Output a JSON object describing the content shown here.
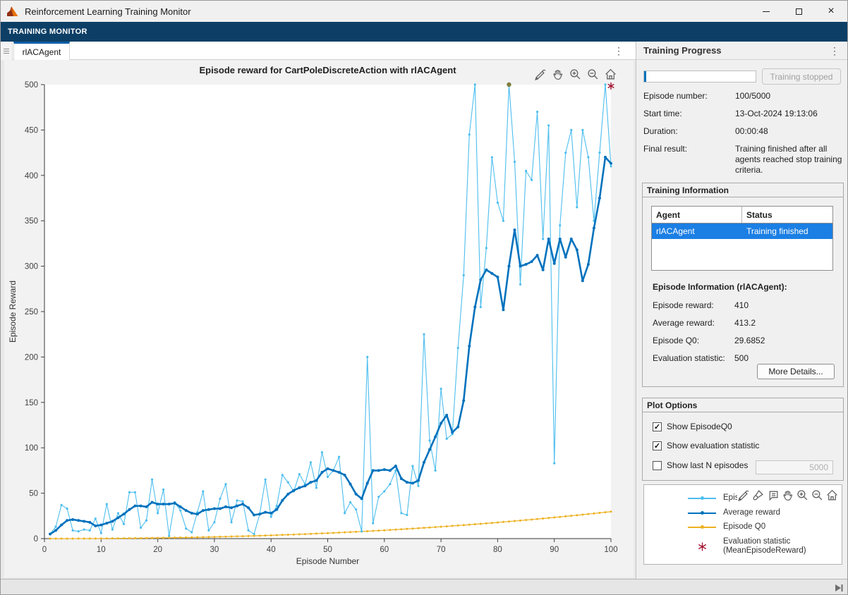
{
  "window": {
    "title": "Reinforcement Learning Training Monitor"
  },
  "ribbon": {
    "label": "TRAINING MONITOR"
  },
  "tabs": {
    "active": "rlACAgent",
    "menu_icon": "kebab-menu",
    "grip_icon": "tab-grip"
  },
  "colors": {
    "accent": "#0072bd",
    "episode_reward": "#4dbeee",
    "average_reward": "#0072bd",
    "episode_q0": "#edb120",
    "evaluation": "#a2142f",
    "ribbon": "#0d3f66",
    "row_selection": "#1b7fe4"
  },
  "training_progress": {
    "title": "Training Progress",
    "progress_percent": 2,
    "stop_button": "Training stopped",
    "rows": [
      {
        "label": "Episode number:",
        "value": "100/5000"
      },
      {
        "label": "Start time:",
        "value": "13-Oct-2024 19:13:06"
      },
      {
        "label": "Duration:",
        "value": "00:00:48"
      },
      {
        "label": "Final result:",
        "value": "Training finished after all agents reached stop training criteria."
      }
    ]
  },
  "training_information": {
    "title": "Training Information",
    "table": {
      "columns": [
        "Agent",
        "Status"
      ],
      "rows": [
        {
          "agent": "rlACAgent",
          "status": "Training finished",
          "selected": true
        }
      ]
    },
    "episode_info_title": "Episode Information (rlACAgent):",
    "rows": [
      {
        "label": "Episode reward:",
        "value": "410"
      },
      {
        "label": "Average reward:",
        "value": "413.2"
      },
      {
        "label": "Episode Q0:",
        "value": "29.6852"
      },
      {
        "label": "Evaluation statistic:",
        "value": "500"
      }
    ],
    "more_details_button": "More Details..."
  },
  "plot_options": {
    "title": "Plot Options",
    "items": [
      {
        "label": "Show EpisodeQ0",
        "checked": true
      },
      {
        "label": "Show evaluation statistic",
        "checked": true
      },
      {
        "label": "Show last N episodes",
        "checked": false
      }
    ],
    "last_n_value": "5000",
    "check_glyph": "✓"
  },
  "legend": {
    "items": [
      {
        "label": "Episo",
        "color": "#4dbeee",
        "type": "line"
      },
      {
        "label": "Average reward",
        "color": "#0072bd",
        "type": "line"
      },
      {
        "label": "Episode Q0",
        "color": "#edb120",
        "type": "line"
      },
      {
        "label": "Evaluation statistic (MeanEpisodeReward)",
        "label_line1": "Evaluation statistic",
        "label_line2": "(MeanEpisodeReward)",
        "color": "#a2142f",
        "type": "asterisk"
      }
    ]
  },
  "chart_data": {
    "type": "line",
    "title": "Episode reward for CartPoleDiscreteAction with rlACAgent",
    "xlabel": "Episode Number",
    "ylabel": "Episode Reward",
    "xlim": [
      0,
      100
    ],
    "ylim": [
      0,
      500
    ],
    "xticks": [
      0,
      10,
      20,
      30,
      40,
      50,
      60,
      70,
      80,
      90,
      100
    ],
    "yticks": [
      0,
      50,
      100,
      150,
      200,
      250,
      300,
      350,
      400,
      450,
      500
    ],
    "grid": false,
    "legend_position": "external-panel",
    "x_start": 1,
    "series": [
      {
        "name": "Episode reward",
        "color": "#4dbeee",
        "width": 1.1,
        "marker": 1.6,
        "values": [
          5,
          13,
          37,
          33,
          9,
          8,
          10,
          9,
          22,
          6,
          38,
          10,
          28,
          16,
          51,
          51,
          12,
          20,
          65,
          28,
          54,
          3,
          40,
          31,
          11,
          7,
          29,
          52,
          9,
          18,
          44,
          60,
          18,
          42,
          41,
          9,
          5,
          27,
          65,
          24,
          36,
          70,
          62,
          52,
          71,
          60,
          84,
          56,
          95,
          68,
          75,
          90,
          28,
          40,
          32,
          8,
          200,
          17,
          46,
          52,
          60,
          75,
          28,
          26,
          80,
          58,
          225,
          108,
          75,
          165,
          110,
          115,
          210,
          290,
          445,
          500,
          255,
          320,
          420,
          370,
          350,
          500,
          415,
          280,
          405,
          395,
          470,
          330,
          455,
          83,
          345,
          425,
          450,
          365,
          450,
          420,
          350,
          425,
          500,
          410
        ]
      },
      {
        "name": "Average reward",
        "color": "#0072bd",
        "width": 2.6,
        "marker": 2.0,
        "values": [
          5,
          9,
          15,
          20,
          21,
          20,
          19,
          18,
          14,
          15,
          17,
          19,
          23,
          27,
          32,
          36,
          36,
          35,
          40,
          38,
          38,
          38,
          39,
          35,
          31,
          28,
          27,
          31,
          32,
          33,
          33,
          35,
          34,
          36,
          38,
          34,
          26,
          27,
          29,
          28,
          32,
          42,
          49,
          53,
          56,
          58,
          62,
          64,
          73,
          77,
          75,
          73,
          70,
          60,
          49,
          44,
          61,
          75,
          75,
          76,
          75,
          80,
          66,
          62,
          61,
          64,
          84,
          98,
          112,
          127,
          136,
          117,
          123,
          152,
          212,
          255,
          285,
          296,
          292,
          288,
          252,
          300,
          340,
          300,
          302,
          305,
          312,
          296,
          330,
          303,
          330,
          310,
          330,
          318,
          284,
          302,
          342,
          375,
          420,
          413.2
        ]
      },
      {
        "name": "Episode Q0",
        "color": "#edb120",
        "width": 1.2,
        "marker": 1.5,
        "values": [
          0.01,
          0.01,
          0.02,
          0.02,
          0.03,
          0.05,
          0.08,
          0.1,
          0.12,
          0.15,
          0.2,
          0.24,
          0.29,
          0.33,
          0.38,
          0.45,
          0.52,
          0.59,
          0.66,
          0.73,
          0.83,
          0.93,
          1.02,
          1.12,
          1.22,
          1.35,
          1.48,
          1.6,
          1.73,
          1.86,
          2.02,
          2.18,
          2.33,
          2.49,
          2.65,
          2.84,
          3.03,
          3.22,
          3.42,
          3.61,
          3.83,
          4.06,
          4.28,
          4.51,
          4.73,
          4.99,
          5.25,
          5.51,
          5.77,
          6.03,
          6.33,
          6.62,
          6.92,
          7.21,
          7.51,
          7.84,
          8.17,
          8.5,
          8.84,
          9.17,
          9.54,
          9.91,
          10.28,
          10.65,
          11.02,
          11.43,
          11.84,
          12.25,
          12.66,
          13.07,
          13.52,
          13.97,
          14.42,
          14.87,
          15.32,
          15.81,
          16.3,
          16.79,
          17.28,
          17.77,
          18.3,
          18.83,
          19.37,
          19.9,
          20.43,
          21.0,
          21.58,
          22.15,
          22.73,
          23.3,
          23.92,
          24.53,
          25.15,
          25.76,
          26.38,
          27.04,
          27.7,
          28.36,
          29.02,
          29.69
        ]
      }
    ],
    "evaluation_marker": {
      "x": 100,
      "y": 500,
      "color": "#a2142f",
      "name": "Evaluation statistic (MeanEpisodeReward)"
    },
    "peak_marker": {
      "x": 82,
      "y": 500,
      "color": "#7e7e3f"
    }
  },
  "icons": {
    "plot_toolbar": [
      "export-icon",
      "pan-icon",
      "zoom-in-icon",
      "zoom-out-icon",
      "home-icon"
    ],
    "legend_toolbar": [
      "export-icon",
      "brush-icon",
      "datatip-icon",
      "pan-icon",
      "zoom-in-icon",
      "zoom-out-icon",
      "home-icon"
    ]
  }
}
